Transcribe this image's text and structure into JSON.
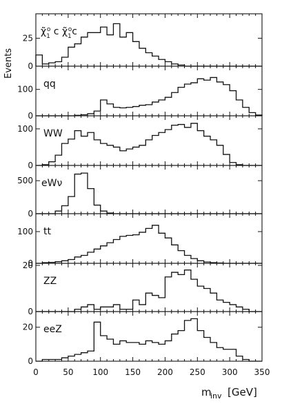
{
  "figure": {
    "ylabel": "Events",
    "xlabel_main": "m",
    "xlabel_sub": "inv",
    "xlabel_unit": "[GeV]"
  },
  "chart_data": {
    "type": "histogram",
    "layout": "stacked-panels",
    "shared_x": {
      "range": [
        0,
        350
      ],
      "bin_width": 10,
      "ticks": [
        0,
        50,
        100,
        150,
        200,
        250,
        300,
        350
      ],
      "tick_labels": [
        "0",
        "50",
        "100",
        "150",
        "200",
        "250",
        "300",
        "350"
      ]
    },
    "grid": false,
    "line_color": "#111111",
    "panels": [
      {
        "label": "χ̃₁c χ̃₁c",
        "label_main": "χ̃",
        "label_sub1": "1",
        "label_sup1": "o",
        "label_mid": " c ",
        "label_sub2": "1",
        "label_sup2": "o",
        "label_end": "c",
        "ylim": [
          0,
          45
        ],
        "ticks": [
          0,
          25
        ],
        "tick_labels": [
          "0",
          "25"
        ],
        "values": [
          10,
          2,
          3,
          4,
          8,
          17,
          20,
          26,
          30,
          30,
          35,
          28,
          38,
          26,
          30,
          22,
          16,
          12,
          9,
          6,
          4,
          2,
          1,
          0,
          0,
          0,
          0,
          0,
          0,
          0,
          0,
          0,
          0,
          0,
          0
        ]
      },
      {
        "label": "qq",
        "ylim": [
          0,
          180
        ],
        "ticks": [
          0,
          100
        ],
        "tick_labels": [
          "0",
          "100"
        ],
        "values": [
          0,
          0,
          0,
          0,
          0,
          0,
          2,
          4,
          8,
          18,
          60,
          45,
          32,
          30,
          32,
          35,
          40,
          42,
          52,
          60,
          70,
          88,
          108,
          120,
          125,
          140,
          135,
          145,
          128,
          118,
          95,
          60,
          32,
          12,
          3
        ]
      },
      {
        "label": "WW",
        "ylim": [
          0,
          130
        ],
        "ticks": [
          0,
          100
        ],
        "tick_labels": [
          "0",
          "100"
        ],
        "values": [
          0,
          2,
          10,
          28,
          60,
          72,
          95,
          80,
          90,
          70,
          60,
          55,
          50,
          40,
          45,
          50,
          55,
          70,
          82,
          90,
          98,
          110,
          112,
          104,
          115,
          95,
          80,
          70,
          55,
          30,
          8,
          2,
          0,
          0,
          0
        ]
      },
      {
        "label": "eWν",
        "ylim": [
          0,
          700
        ],
        "ticks": [
          0,
          500
        ],
        "tick_labels": [
          "0",
          "500"
        ],
        "values": [
          0,
          0,
          0,
          40,
          120,
          260,
          600,
          615,
          380,
          130,
          40,
          10,
          0,
          0,
          0,
          0,
          0,
          0,
          0,
          0,
          0,
          0,
          0,
          0,
          0,
          0,
          0,
          0,
          0,
          0,
          0,
          0,
          0,
          0,
          0
        ]
      },
      {
        "label": "tt",
        "ylim": [
          0,
          150
        ],
        "ticks": [
          0,
          100
        ],
        "tick_labels": [
          "0",
          "100"
        ],
        "values": [
          0,
          2,
          3,
          5,
          8,
          12,
          20,
          25,
          35,
          45,
          55,
          65,
          75,
          85,
          88,
          90,
          98,
          110,
          120,
          95,
          80,
          58,
          40,
          25,
          15,
          8,
          4,
          2,
          1,
          0,
          0,
          0,
          0,
          0,
          0
        ]
      },
      {
        "label": "ZZ",
        "ylim": [
          0,
          20
        ],
        "ticks": [
          0,
          20
        ],
        "tick_labels": [
          "0",
          "20"
        ],
        "values": [
          0,
          0,
          0,
          0,
          0,
          0,
          1,
          2,
          3,
          1,
          2,
          2,
          3,
          1,
          1,
          5,
          3,
          8,
          7,
          6,
          15,
          17,
          16,
          18,
          14,
          11,
          10,
          8,
          5,
          4,
          3,
          2,
          1,
          0,
          0
        ]
      },
      {
        "label": "eeZ",
        "ylim": [
          0,
          28
        ],
        "ticks": [
          0,
          20
        ],
        "tick_labels": [
          "0",
          "20"
        ],
        "values": [
          0,
          1,
          1,
          1,
          2,
          3,
          4,
          5,
          6,
          23,
          15,
          13,
          10,
          12,
          11,
          11,
          10,
          12,
          11,
          10,
          12,
          16,
          18,
          24,
          25,
          18,
          14,
          11,
          8,
          7,
          7,
          3,
          1,
          0,
          0
        ]
      }
    ]
  }
}
